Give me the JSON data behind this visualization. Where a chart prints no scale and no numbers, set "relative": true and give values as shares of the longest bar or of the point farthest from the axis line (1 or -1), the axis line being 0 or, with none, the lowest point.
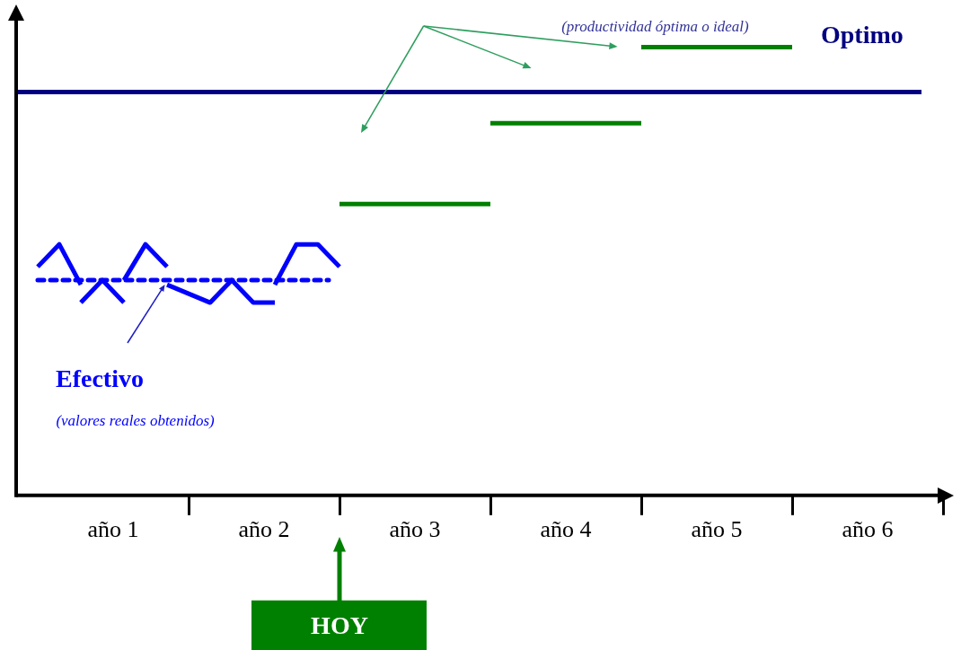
{
  "chart_data": {
    "type": "line",
    "relative": true,
    "legend": false,
    "grid": false,
    "marker": "none",
    "tick_labels": "x",
    "categories": [
      null,
      null,
      null,
      null,
      null,
      null,
      null,
      null,
      null,
      "año 1",
      null,
      null,
      null,
      null,
      null,
      null,
      null,
      null,
      null,
      null,
      null,
      null,
      null,
      "año 2",
      null,
      null,
      null,
      null,
      null,
      null,
      null,
      null,
      null,
      null,
      null,
      null,
      null,
      "año 3",
      null,
      null,
      null,
      null,
      null,
      null,
      null,
      null,
      null,
      null,
      null,
      null,
      null,
      "año 4",
      null,
      null,
      null,
      null,
      null,
      null,
      null,
      null,
      null,
      null,
      null,
      null,
      null,
      "año 5",
      null,
      null,
      null,
      null,
      null,
      null,
      null,
      null,
      null,
      null,
      null,
      null,
      null,
      "año 6",
      null,
      null,
      null,
      null,
      null,
      null,
      null,
      null
    ],
    "series": [
      {
        "name": "Optimo",
        "color": "#000080",
        "values": [
          0.9,
          null,
          null,
          null,
          null,
          null,
          null,
          null,
          null,
          null,
          null,
          null,
          null,
          null,
          null,
          null,
          null,
          null,
          null,
          null,
          null,
          null,
          null,
          null,
          null,
          null,
          null,
          null,
          null,
          null,
          null,
          null,
          null,
          null,
          null,
          null,
          null,
          null,
          null,
          null,
          null,
          null,
          null,
          null,
          null,
          null,
          null,
          null,
          null,
          null,
          null,
          null,
          null,
          null,
          null,
          null,
          null,
          null,
          null,
          null,
          null,
          null,
          null,
          null,
          null,
          null,
          null,
          null,
          null,
          null,
          null,
          null,
          null,
          null,
          null,
          null,
          null,
          null,
          null,
          null,
          null,
          null,
          null,
          null,
          0.9,
          null,
          null,
          null
        ]
      },
      {
        "name": "Efectivo",
        "color": "#0000ff",
        "values": [
          null,
          null,
          0.51,
          null,
          0.56,
          null,
          0.47,
          null,
          null,
          null,
          null,
          null,
          null,
          null,
          null,
          null,
          null,
          null,
          null,
          null,
          null,
          null,
          null,
          null,
          null,
          null,
          null,
          null,
          null,
          null,
          null,
          null,
          null,
          null,
          null,
          null,
          null,
          null,
          null,
          null,
          null,
          null,
          null,
          null,
          null,
          null,
          null,
          null,
          null,
          null,
          null,
          null,
          null,
          null,
          null,
          null,
          null,
          null,
          null,
          null,
          null,
          null,
          null,
          null,
          null,
          null,
          null,
          null,
          null,
          null,
          null,
          null,
          null,
          null,
          null,
          null,
          null,
          null,
          null,
          null,
          null,
          null,
          null,
          null,
          null,
          null,
          null,
          null
        ]
      },
      {
        "color": "#0000ff",
        "values": [
          null,
          null,
          null,
          null,
          null,
          null,
          0.43,
          null,
          0.48,
          null,
          0.43,
          null,
          null,
          null,
          null,
          null,
          null,
          null,
          null,
          null,
          null,
          null,
          null,
          null,
          null,
          null,
          null,
          null,
          null,
          null,
          null,
          null,
          null,
          null,
          null,
          null,
          null,
          null,
          null,
          null,
          null,
          null,
          null,
          null,
          null,
          null,
          null,
          null,
          null,
          null,
          null,
          null,
          null,
          null,
          null,
          null,
          null,
          null,
          null,
          null,
          null,
          null,
          null,
          null,
          null,
          null,
          null,
          null,
          null,
          null,
          null,
          null,
          null,
          null,
          null,
          null,
          null,
          null,
          null,
          null,
          null,
          null,
          null,
          null,
          null,
          null,
          null,
          null
        ]
      },
      {
        "color": "#0000ff",
        "values": [
          null,
          null,
          null,
          null,
          null,
          null,
          null,
          null,
          null,
          null,
          0.48,
          null,
          0.56,
          null,
          0.51,
          null,
          null,
          null,
          null,
          null,
          null,
          null,
          null,
          null,
          null,
          null,
          null,
          null,
          null,
          null,
          null,
          null,
          null,
          null,
          null,
          null,
          null,
          null,
          null,
          null,
          null,
          null,
          null,
          null,
          null,
          null,
          null,
          null,
          null,
          null,
          null,
          null,
          null,
          null,
          null,
          null,
          null,
          null,
          null,
          null,
          null,
          null,
          null,
          null,
          null,
          null,
          null,
          null,
          null,
          null,
          null,
          null,
          null,
          null,
          null,
          null,
          null,
          null,
          null,
          null,
          null,
          null,
          null,
          null,
          null,
          null,
          null,
          null
        ]
      },
      {
        "color": "#0000ff",
        "values": [
          null,
          null,
          null,
          null,
          null,
          null,
          null,
          null,
          null,
          null,
          null,
          null,
          null,
          null,
          0.47,
          null,
          null,
          null,
          0.43,
          null,
          0.48,
          null,
          0.43,
          null,
          0.43,
          null,
          null,
          null,
          null,
          null,
          null,
          null,
          null,
          null,
          null,
          null,
          null,
          null,
          null,
          null,
          null,
          null,
          null,
          null,
          null,
          null,
          null,
          null,
          null,
          null,
          null,
          null,
          null,
          null,
          null,
          null,
          null,
          null,
          null,
          null,
          null,
          null,
          null,
          null,
          null,
          null,
          null,
          null,
          null,
          null,
          null,
          null,
          null,
          null,
          null,
          null,
          null,
          null,
          null,
          null,
          null,
          null,
          null,
          null,
          null,
          null,
          null,
          null
        ]
      },
      {
        "color": "#0000ff",
        "values": [
          null,
          null,
          null,
          null,
          null,
          null,
          null,
          null,
          null,
          null,
          null,
          null,
          null,
          null,
          null,
          null,
          null,
          null,
          null,
          null,
          null,
          null,
          null,
          null,
          0.47,
          null,
          0.56,
          null,
          0.56,
          null,
          0.51,
          null,
          null,
          null,
          null,
          null,
          null,
          null,
          null,
          null,
          null,
          null,
          null,
          null,
          null,
          null,
          null,
          null,
          null,
          null,
          null,
          null,
          null,
          null,
          null,
          null,
          null,
          null,
          null,
          null,
          null,
          null,
          null,
          null,
          null,
          null,
          null,
          null,
          null,
          null,
          null,
          null,
          null,
          null,
          null,
          null,
          null,
          null,
          null,
          null,
          null,
          null,
          null,
          null,
          null,
          null,
          null,
          null
        ]
      },
      {
        "color": "#0000ff",
        "line_style": "dotted",
        "values": [
          null,
          null,
          0.48,
          null,
          null,
          null,
          null,
          null,
          null,
          null,
          null,
          null,
          null,
          null,
          null,
          null,
          null,
          null,
          null,
          null,
          null,
          null,
          null,
          null,
          null,
          null,
          null,
          null,
          null,
          0.48,
          null,
          null,
          null,
          null,
          null,
          null,
          null,
          null,
          null,
          null,
          null,
          null,
          null,
          null,
          null,
          null,
          null,
          null,
          null,
          null,
          null,
          null,
          null,
          null,
          null,
          null,
          null,
          null,
          null,
          null,
          null,
          null,
          null,
          null,
          null,
          null,
          null,
          null,
          null,
          null,
          null,
          null,
          null,
          null,
          null,
          null,
          null,
          null,
          null,
          null,
          null,
          null,
          null,
          null,
          null,
          null,
          null,
          null
        ]
      },
      {
        "color": "#008000",
        "values": [
          null,
          null,
          null,
          null,
          null,
          null,
          null,
          null,
          null,
          null,
          null,
          null,
          null,
          null,
          null,
          null,
          null,
          null,
          null,
          null,
          null,
          null,
          null,
          null,
          null,
          null,
          null,
          null,
          null,
          null,
          0.65,
          null,
          null,
          null,
          null,
          null,
          null,
          null,
          null,
          null,
          null,
          null,
          null,
          null,
          0.65,
          null,
          null,
          null,
          null,
          null,
          null,
          null,
          null,
          null,
          null,
          null,
          null,
          null,
          null,
          null,
          null,
          null,
          null,
          null,
          null,
          null,
          null,
          null,
          null,
          null,
          null,
          null,
          null,
          null,
          null,
          null,
          null,
          null,
          null,
          null,
          null,
          null,
          null,
          null,
          null,
          null,
          null,
          null
        ]
      },
      {
        "color": "#008000",
        "values": [
          null,
          null,
          null,
          null,
          null,
          null,
          null,
          null,
          null,
          null,
          null,
          null,
          null,
          null,
          null,
          null,
          null,
          null,
          null,
          null,
          null,
          null,
          null,
          null,
          null,
          null,
          null,
          null,
          null,
          null,
          null,
          null,
          null,
          null,
          null,
          null,
          null,
          null,
          null,
          null,
          null,
          null,
          null,
          null,
          0.83,
          null,
          null,
          null,
          null,
          null,
          null,
          null,
          null,
          null,
          null,
          null,
          null,
          null,
          0.83,
          null,
          null,
          null,
          null,
          null,
          null,
          null,
          null,
          null,
          null,
          null,
          null,
          null,
          null,
          null,
          null,
          null,
          null,
          null,
          null,
          null,
          null,
          null,
          null,
          null,
          null,
          null,
          null,
          null
        ]
      },
      {
        "color": "#008000",
        "values": [
          null,
          null,
          null,
          null,
          null,
          null,
          null,
          null,
          null,
          null,
          null,
          null,
          null,
          null,
          null,
          null,
          null,
          null,
          null,
          null,
          null,
          null,
          null,
          null,
          null,
          null,
          null,
          null,
          null,
          null,
          null,
          null,
          null,
          null,
          null,
          null,
          null,
          null,
          null,
          null,
          null,
          null,
          null,
          null,
          null,
          null,
          null,
          null,
          null,
          null,
          null,
          null,
          null,
          null,
          null,
          null,
          null,
          null,
          1,
          null,
          null,
          null,
          null,
          null,
          null,
          null,
          null,
          null,
          null,
          null,
          null,
          null,
          1,
          null,
          null,
          null,
          null,
          null,
          null,
          null,
          null,
          null,
          null,
          null,
          null,
          null,
          null,
          null
        ]
      }
    ],
    "annotations": [
      "(productividad óptima o ideal)",
      "(valores reales obtenidos)",
      "HOY"
    ]
  }
}
